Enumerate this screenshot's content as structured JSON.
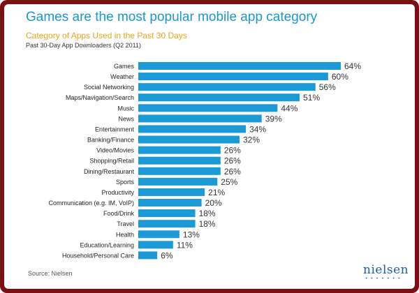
{
  "header": {
    "title": "Games are the most popular mobile app category",
    "subtitle": "Category of Apps Used in the Past 30 Days",
    "note": "Past 30-Day App Downloaders  (Q2 2011)"
  },
  "footer": {
    "source": "Source: Nielsen",
    "logo_text": "nielsen",
    "logo_dots": "• • • • • • •"
  },
  "colors": {
    "bar": "#1b9ad6",
    "title": "#1b96cf",
    "subtitle": "#e8a31b",
    "frame": "#7a0f14"
  },
  "chart_data": {
    "type": "bar",
    "orientation": "horizontal",
    "categories": [
      "Games",
      "Weather",
      "Social Networking",
      "Maps/Navigation/Search",
      "Music",
      "News",
      "Entertainment",
      "Banking/Finance",
      "Video/Movies",
      "Shopping/Retail",
      "Dining/Restaurant",
      "Sports",
      "Productivity",
      "Communication (e.g. IM, VoIP)",
      "Food/Drink",
      "Travel",
      "Health",
      "Education/Learning",
      "Household/Personal Care"
    ],
    "values": [
      64,
      60,
      56,
      51,
      44,
      39,
      34,
      32,
      26,
      26,
      26,
      25,
      21,
      20,
      18,
      18,
      13,
      11,
      6
    ],
    "value_labels": [
      "64%",
      "60%",
      "56%",
      "51%",
      "44%",
      "39%",
      "34%",
      "32%",
      "26%",
      "26%",
      "26%",
      "25%",
      "21%",
      "20%",
      "18%",
      "18%",
      "13%",
      "11%",
      "6%"
    ],
    "unit": "%",
    "xlim": [
      0,
      64
    ],
    "grid": false,
    "legend": "none"
  }
}
